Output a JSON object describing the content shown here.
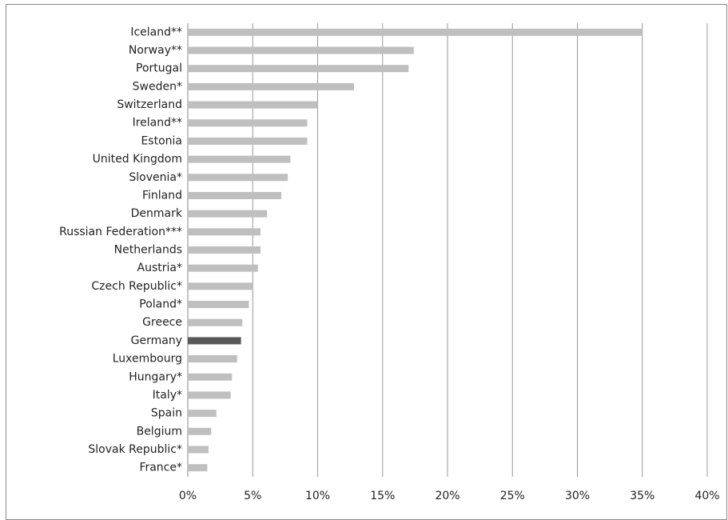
{
  "chart_data": {
    "type": "barh",
    "categories": [
      "Iceland**",
      "Norway**",
      "Portugal",
      "Sweden*",
      "Switzerland",
      "Ireland**",
      "Estonia",
      "United Kingdom",
      "Slovenia*",
      "Finland",
      "Denmark",
      "Russian Federation***",
      "Netherlands",
      "Austria*",
      "Czech Republic*",
      "Poland*",
      "Greece",
      "Germany",
      "Luxembourg",
      "Hungary*",
      "Italy*",
      "Spain",
      "Belgium",
      "Slovak Republic*",
      "France*"
    ],
    "values": [
      35,
      17.4,
      17.0,
      12.8,
      10.0,
      9.2,
      9.2,
      7.9,
      7.7,
      7.2,
      6.1,
      5.6,
      5.6,
      5.4,
      5.0,
      4.7,
      4.2,
      4.1,
      3.8,
      3.4,
      3.3,
      2.2,
      1.8,
      1.6,
      1.5
    ],
    "colors": [
      "#bfbfbf",
      "#bfbfbf",
      "#bfbfbf",
      "#bfbfbf",
      "#bfbfbf",
      "#bfbfbf",
      "#bfbfbf",
      "#bfbfbf",
      "#bfbfbf",
      "#bfbfbf",
      "#bfbfbf",
      "#bfbfbf",
      "#bfbfbf",
      "#bfbfbf",
      "#bfbfbf",
      "#bfbfbf",
      "#bfbfbf",
      "#595959",
      "#bfbfbf",
      "#bfbfbf",
      "#bfbfbf",
      "#bfbfbf",
      "#bfbfbf",
      "#bfbfbf",
      "#bfbfbf"
    ],
    "xlim": [
      0,
      40
    ],
    "xticks": [
      {
        "value": 0,
        "label": "0%"
      },
      {
        "value": 5,
        "label": "5%"
      },
      {
        "value": 10,
        "label": "10%"
      },
      {
        "value": 15,
        "label": "15%"
      },
      {
        "value": 20,
        "label": "20%"
      },
      {
        "value": 25,
        "label": "25%"
      },
      {
        "value": 30,
        "label": "30%"
      },
      {
        "value": 35,
        "label": "35%"
      },
      {
        "value": 40,
        "label": "40%"
      }
    ],
    "grid": true
  }
}
